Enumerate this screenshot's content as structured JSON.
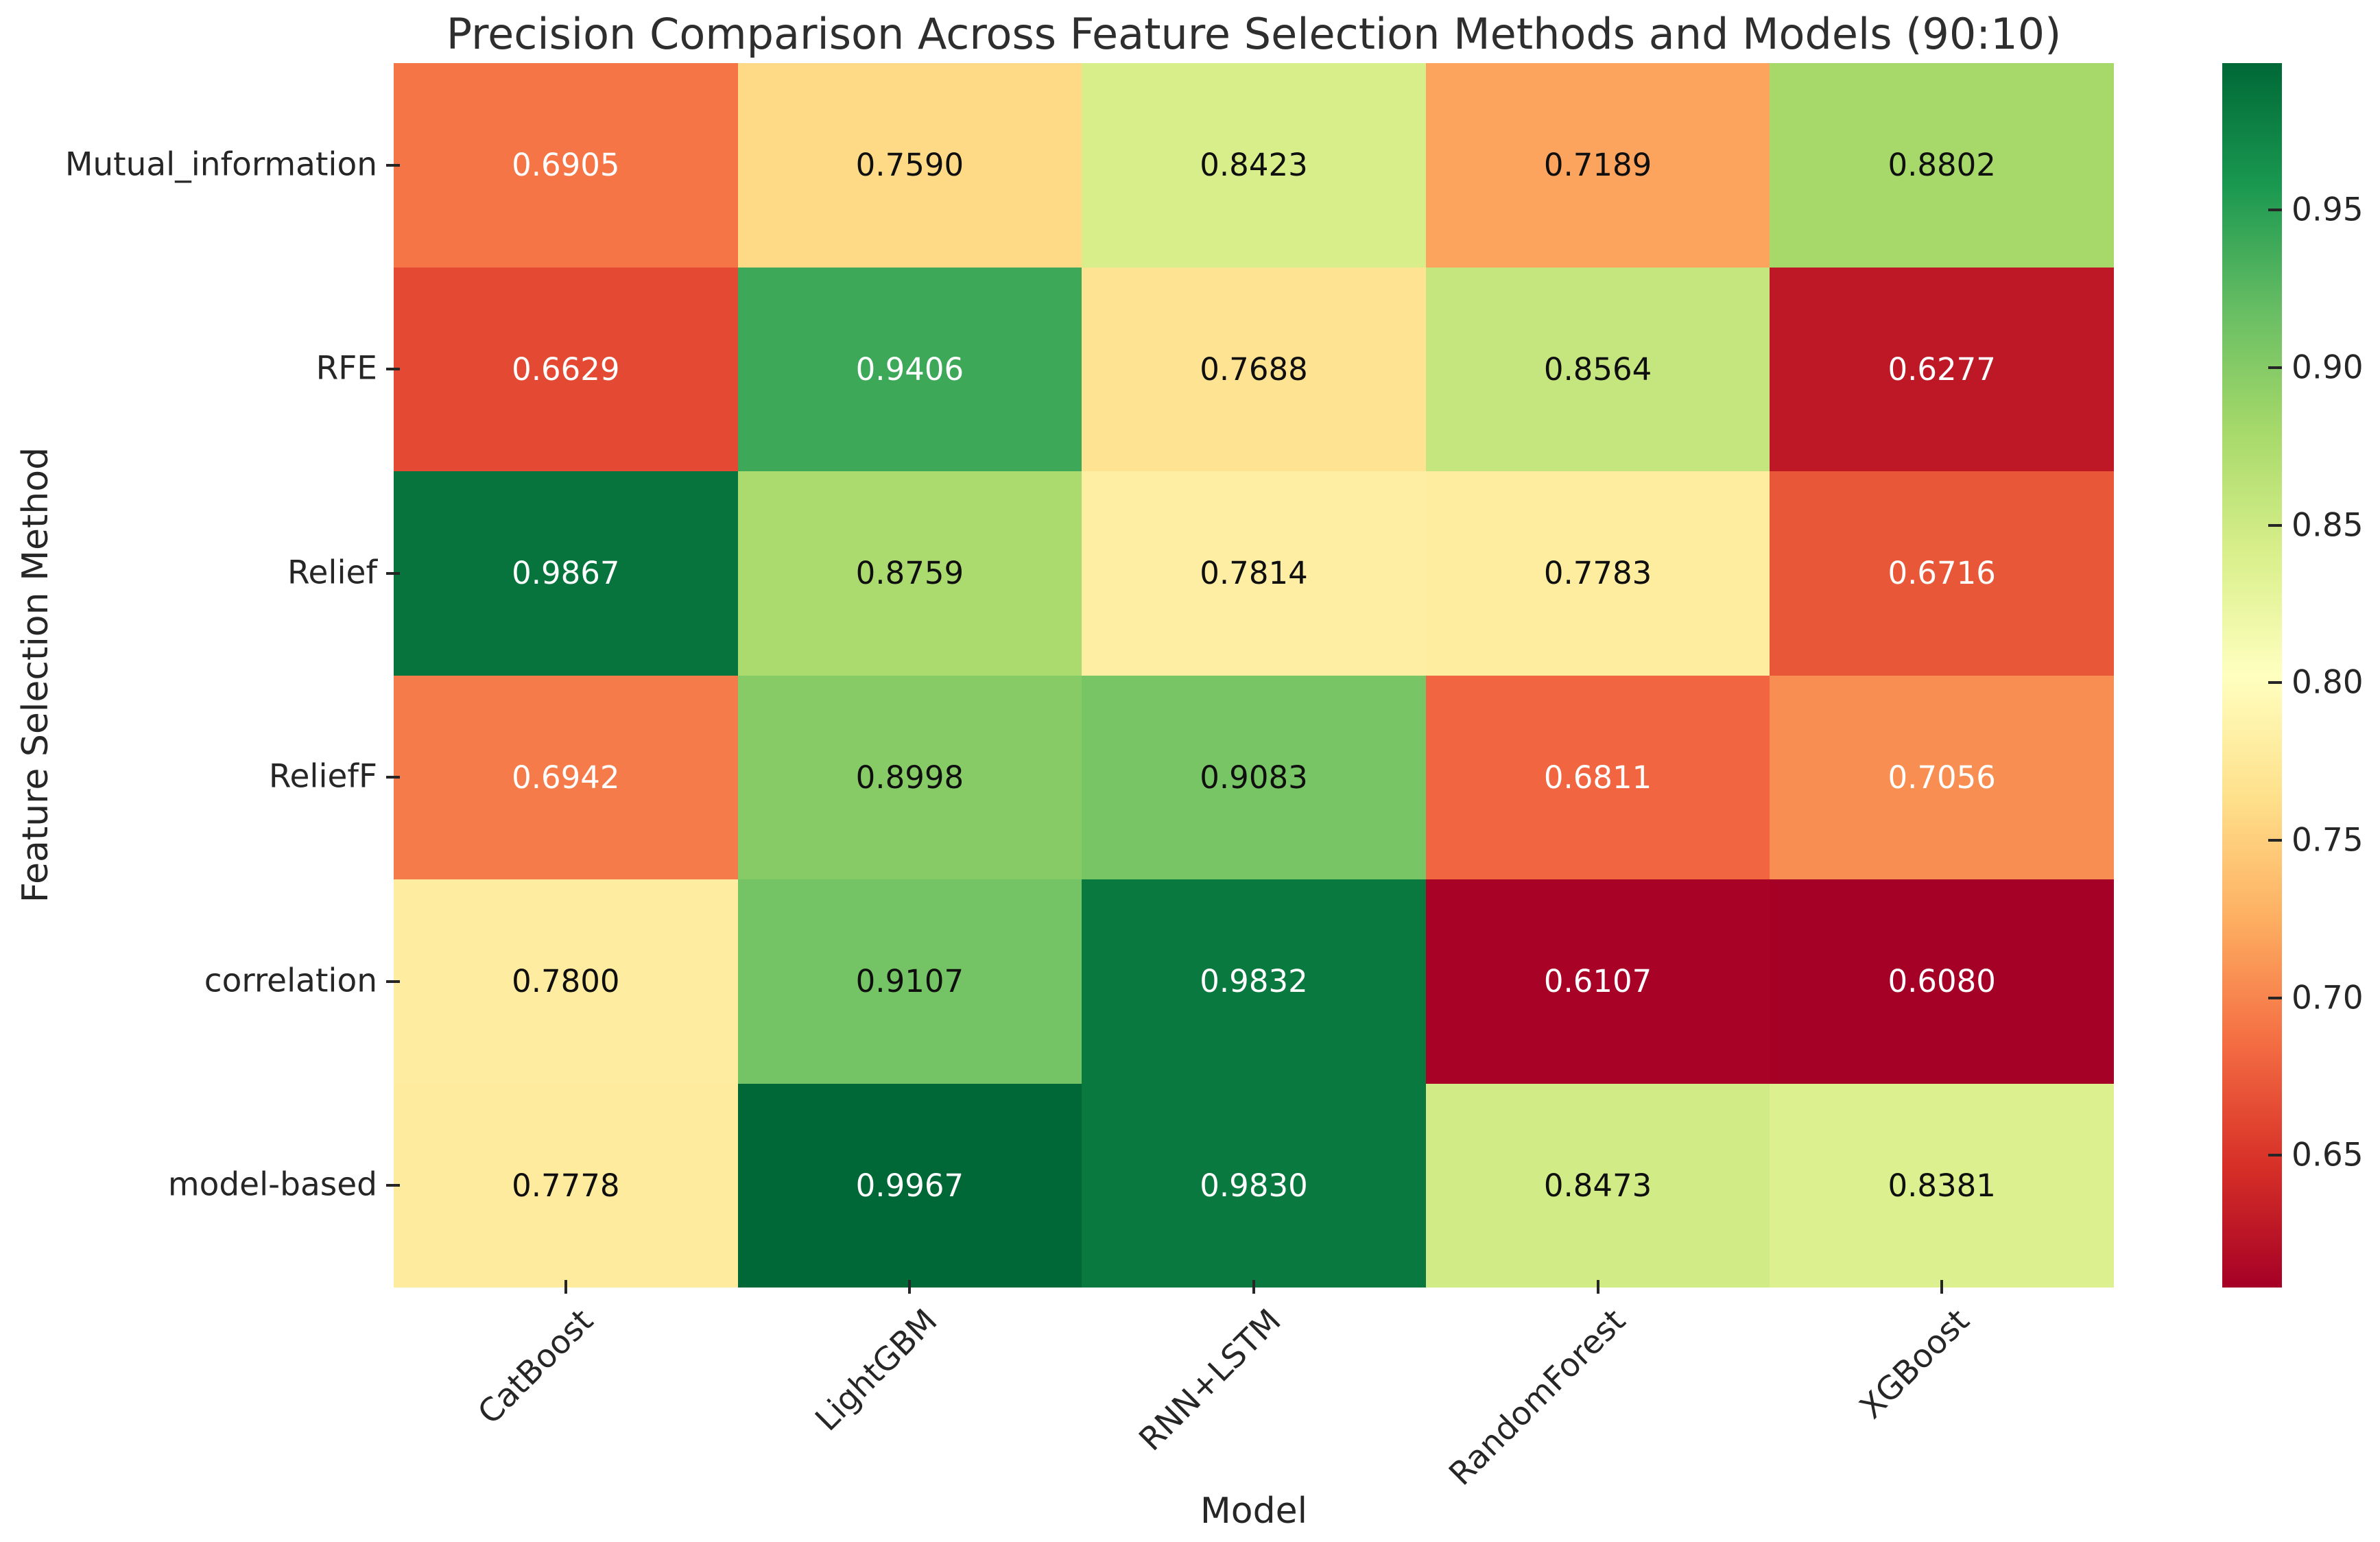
{
  "chart_data": {
    "type": "heatmap",
    "title": "Precision Comparison Across Feature Selection Methods and Models (90:10)",
    "xlabel": "Model",
    "ylabel": "Feature Selection Method",
    "columns": [
      "CatBoost",
      "LightGBM",
      "RNN+LSTM",
      "RandomForest",
      "XGBoost"
    ],
    "rows": [
      "Mutual_information",
      "RFE",
      "Relief",
      "ReliefF",
      "correlation",
      "model-based"
    ],
    "values": [
      [
        "0.6905",
        "0.7590",
        "0.8423",
        "0.7189",
        "0.8802"
      ],
      [
        "0.6629",
        "0.9406",
        "0.7688",
        "0.8564",
        "0.6277"
      ],
      [
        "0.9867",
        "0.8759",
        "0.7814",
        "0.7783",
        "0.6716"
      ],
      [
        "0.6942",
        "0.8998",
        "0.9083",
        "0.6811",
        "0.7056"
      ],
      [
        "0.7800",
        "0.9107",
        "0.9832",
        "0.6107",
        "0.6080"
      ],
      [
        "0.7778",
        "0.9967",
        "0.9830",
        "0.8473",
        "0.8381"
      ]
    ],
    "vmin": 0.608,
    "vmax": 0.9967,
    "colormap": {
      "name": "RdYlGn",
      "anchors": [
        "#a50026",
        "#d73027",
        "#f46d43",
        "#fdae61",
        "#fee08b",
        "#ffffbf",
        "#d9ef8b",
        "#a6d96a",
        "#66bd63",
        "#1a9850",
        "#006837"
      ]
    },
    "colorbar_tick_labels": [
      "0.95",
      "0.90",
      "0.85",
      "0.80",
      "0.75",
      "0.70",
      "0.65"
    ],
    "colorbar_tick_values": [
      0.95,
      0.9,
      0.85,
      0.8,
      0.75,
      0.7,
      0.65
    ],
    "annotation_text_colors": {
      "dark": "#0f0f0f",
      "light": "#ffffff"
    },
    "grid": "off",
    "legend": "colorbar-right"
  }
}
